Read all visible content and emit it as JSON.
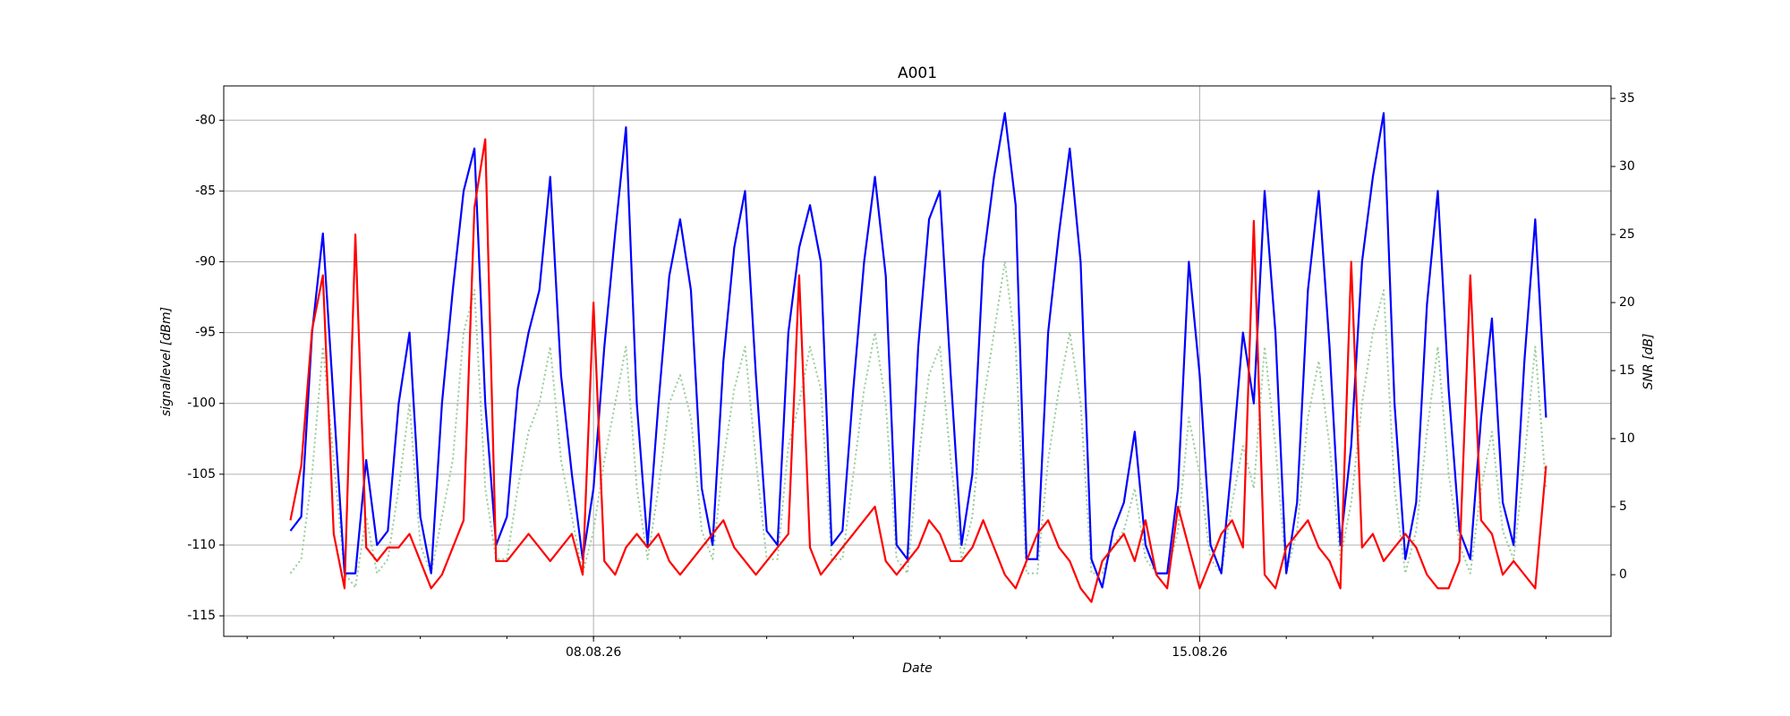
{
  "chart_data": {
    "type": "line",
    "title": "A001",
    "xlabel": "Date",
    "ylabel": "signallevel [dBm]",
    "y2label": "SNR [dB]",
    "xlim": [
      3.73,
      19.75
    ],
    "xticks": [
      {
        "value": 8,
        "label": "08.08.26"
      },
      {
        "value": 15,
        "label": "15.08.26"
      }
    ],
    "xminorticks": [
      4,
      5,
      6,
      7,
      8,
      9,
      10,
      11,
      12,
      13,
      14,
      15,
      16,
      17,
      18,
      19
    ],
    "ylim": [
      -116.45,
      -77.58
    ],
    "yticks": [
      -115,
      -110,
      -105,
      -100,
      -95,
      -90,
      -85,
      -80
    ],
    "y2lim": [
      -4.53,
      35.92
    ],
    "y2ticks": [
      0,
      5,
      10,
      15,
      20,
      25,
      30,
      35
    ],
    "grid": true,
    "x": [
      4.5,
      4.625,
      4.75,
      4.875,
      5,
      5.125,
      5.25,
      5.375,
      5.5,
      5.625,
      5.75,
      5.875,
      6,
      6.125,
      6.25,
      6.375,
      6.5,
      6.625,
      6.75,
      6.875,
      7,
      7.125,
      7.25,
      7.375,
      7.5,
      7.625,
      7.75,
      7.875,
      8,
      8.125,
      8.25,
      8.375,
      8.5,
      8.625,
      8.75,
      8.875,
      9,
      9.125,
      9.25,
      9.375,
      9.5,
      9.625,
      9.75,
      9.875,
      10,
      10.125,
      10.25,
      10.375,
      10.5,
      10.625,
      10.75,
      10.875,
      11,
      11.125,
      11.25,
      11.375,
      11.5,
      11.625,
      11.75,
      11.875,
      12,
      12.125,
      12.25,
      12.375,
      12.5,
      12.625,
      12.75,
      12.875,
      13,
      13.125,
      13.25,
      13.375,
      13.5,
      13.625,
      13.75,
      13.875,
      14,
      14.125,
      14.25,
      14.375,
      14.5,
      14.625,
      14.75,
      14.875,
      15,
      15.125,
      15.25,
      15.375,
      15.5,
      15.625,
      15.75,
      15.875,
      16,
      16.125,
      16.25,
      16.375,
      16.5,
      16.625,
      16.75,
      16.875,
      17,
      17.125,
      17.25,
      17.375,
      17.5,
      17.625,
      17.75,
      17.875,
      18,
      18.125,
      18.25,
      18.375,
      18.5,
      18.625,
      18.75,
      18.875,
      19
    ],
    "series": [
      {
        "color": "#99cc99",
        "style": "dotted",
        "values": [
          -112,
          -111,
          -105,
          -96,
          -104,
          -112,
          -113,
          -108,
          -112,
          -111,
          -106,
          -100,
          -110,
          -112,
          -108,
          -104,
          -95,
          -92,
          -106,
          -111,
          -111,
          -106,
          -102,
          -100,
          -96,
          -104,
          -108,
          -112,
          -109,
          -104,
          -100,
          -96,
          -106,
          -111,
          -106,
          -100,
          -98,
          -101,
          -109,
          -111,
          -104,
          -99,
          -96,
          -104,
          -111,
          -111,
          -103,
          -100,
          -96,
          -99,
          -111,
          -111,
          -105,
          -99,
          -95,
          -100,
          -111,
          -112,
          -104,
          -98,
          -96,
          -104,
          -111,
          -108,
          -100,
          -95,
          -90,
          -96,
          -112,
          -112,
          -104,
          -99,
          -95,
          -100,
          -112,
          -112,
          -110,
          -109,
          -106,
          -111,
          -112,
          -112,
          -109,
          -101,
          -105,
          -111,
          -112,
          -107,
          -103,
          -106,
          -96,
          -103,
          -112,
          -109,
          -101,
          -97,
          -103,
          -111,
          -107,
          -100,
          -95,
          -92,
          -106,
          -112,
          -109,
          -102,
          -96,
          -105,
          -110,
          -112,
          -106,
          -102,
          -109,
          -111,
          -104,
          -96,
          -106
        ]
      },
      {
        "color": "#0000ff",
        "values": [
          -109,
          -108,
          -95,
          -88,
          -100,
          -112,
          -112,
          -104,
          -110,
          -109,
          -100,
          -95,
          -108,
          -112,
          -100,
          -92,
          -85,
          -82,
          -100,
          -110,
          -108,
          -99,
          -95,
          -92,
          -84,
          -98,
          -105,
          -111,
          -106,
          -96,
          -88,
          -80.5,
          -100,
          -110,
          -100,
          -91,
          -87,
          -92,
          -106,
          -110,
          -97,
          -89,
          -85,
          -98,
          -109,
          -110,
          -95,
          -89,
          -86,
          -90,
          -110,
          -109,
          -99,
          -90,
          -84,
          -91,
          -110,
          -111,
          -96,
          -87,
          -85,
          -98,
          -110,
          -105,
          -90,
          -84,
          -79.5,
          -86,
          -111,
          -111,
          -95,
          -88,
          -82,
          -90,
          -111,
          -113,
          -109,
          -107,
          -102,
          -110,
          -112,
          -112,
          -106,
          -90,
          -98,
          -110,
          -112,
          -104,
          -95,
          -100,
          -85,
          -95,
          -112,
          -107,
          -92,
          -85,
          -96,
          -110,
          -103,
          -90,
          -84,
          -79.5,
          -100,
          -111,
          -107,
          -93,
          -85,
          -99,
          -109,
          -111,
          -101,
          -94,
          -107,
          -110,
          -97,
          -87,
          -101
        ]
      },
      {
        "color": "#ff0000",
        "axis": "y2",
        "values": [
          4,
          8,
          18,
          22,
          3,
          -1,
          25,
          2,
          1,
          2,
          2,
          3,
          1,
          -1,
          0,
          2,
          4,
          27,
          32,
          1,
          1,
          2,
          3,
          2,
          1,
          2,
          3,
          0,
          20,
          1,
          0,
          2,
          3,
          2,
          3,
          1,
          0,
          1,
          2,
          3,
          4,
          2,
          1,
          0,
          1,
          2,
          3,
          22,
          2,
          0,
          1,
          2,
          3,
          4,
          5,
          1,
          0,
          1,
          2,
          4,
          3,
          1,
          1,
          2,
          4,
          2,
          0,
          -1,
          1,
          3,
          4,
          2,
          1,
          -1,
          -2,
          1,
          2,
          3,
          1,
          4,
          0,
          -1,
          5,
          2,
          -1,
          1,
          3,
          4,
          2,
          26,
          0,
          -1,
          2,
          3,
          4,
          2,
          1,
          -1,
          23,
          2,
          3,
          1,
          2,
          3,
          2,
          0,
          -1,
          -1,
          1,
          22,
          4,
          3,
          0,
          1,
          0,
          -1,
          8
        ]
      }
    ]
  }
}
